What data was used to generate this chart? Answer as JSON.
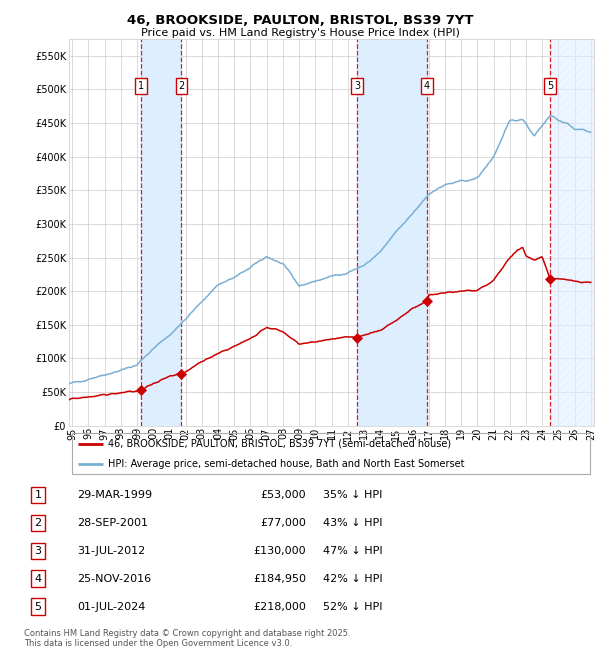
{
  "title": "46, BROOKSIDE, PAULTON, BRISTOL, BS39 7YT",
  "subtitle": "Price paid vs. HM Land Registry's House Price Index (HPI)",
  "ylim": [
    0,
    575000
  ],
  "xlim_start": 1994.8,
  "xlim_end": 2027.2,
  "yticks": [
    0,
    50000,
    100000,
    150000,
    200000,
    250000,
    300000,
    350000,
    400000,
    450000,
    500000,
    550000
  ],
  "ytick_labels": [
    "£0",
    "£50K",
    "£100K",
    "£150K",
    "£200K",
    "£250K",
    "£300K",
    "£350K",
    "£400K",
    "£450K",
    "£500K",
    "£550K"
  ],
  "xticks": [
    1995,
    1996,
    1997,
    1998,
    1999,
    2000,
    2001,
    2002,
    2003,
    2004,
    2005,
    2006,
    2007,
    2008,
    2009,
    2010,
    2011,
    2012,
    2013,
    2014,
    2015,
    2016,
    2017,
    2018,
    2019,
    2020,
    2021,
    2022,
    2023,
    2024,
    2025,
    2026,
    2027
  ],
  "xtick_labels": [
    "95",
    "96",
    "97",
    "98",
    "99",
    "00",
    "01",
    "02",
    "03",
    "04",
    "05",
    "06",
    "07",
    "08",
    "09",
    "10",
    "11",
    "12",
    "13",
    "14",
    "15",
    "16",
    "17",
    "18",
    "19",
    "20",
    "21",
    "22",
    "23",
    "24",
    "25",
    "26",
    "27"
  ],
  "sale_dates": [
    1999.24,
    2001.74,
    2012.58,
    2016.9,
    2024.5
  ],
  "sale_prices": [
    53000,
    77000,
    130000,
    184950,
    218000
  ],
  "sale_labels": [
    "1",
    "2",
    "3",
    "4",
    "5"
  ],
  "red_line_color": "#cc0000",
  "blue_line_color": "#7aafd4",
  "shade_color": "#ddeeff",
  "grid_color": "#cccccc",
  "background_color": "#ffffff",
  "legend_label_red": "46, BROOKSIDE, PAULTON, BRISTOL, BS39 7YT (semi-detached house)",
  "legend_label_blue": "HPI: Average price, semi-detached house, Bath and North East Somerset",
  "table_rows": [
    [
      "1",
      "29-MAR-1999",
      "£53,000",
      "35% ↓ HPI"
    ],
    [
      "2",
      "28-SEP-2001",
      "£77,000",
      "43% ↓ HPI"
    ],
    [
      "3",
      "31-JUL-2012",
      "£130,000",
      "47% ↓ HPI"
    ],
    [
      "4",
      "25-NOV-2016",
      "£184,950",
      "42% ↓ HPI"
    ],
    [
      "5",
      "01-JUL-2024",
      "£218,000",
      "52% ↓ HPI"
    ]
  ],
  "footnote": "Contains HM Land Registry data © Crown copyright and database right 2025.\nThis data is licensed under the Open Government Licence v3.0.",
  "hpi_control_years": [
    1994.8,
    1995,
    1996,
    1997,
    1998,
    1999,
    2000,
    2001,
    2002,
    2003,
    2004,
    2005,
    2006,
    2007,
    2008,
    2009,
    2010,
    2011,
    2012,
    2013,
    2014,
    2015,
    2016,
    2017,
    2018,
    2019,
    2020,
    2021,
    2022,
    2022.8,
    2023.5,
    2024,
    2024.5,
    2025,
    2026,
    2027
  ],
  "hpi_control_values": [
    62000,
    63000,
    70000,
    76000,
    83000,
    90000,
    115000,
    135000,
    158000,
    185000,
    210000,
    220000,
    235000,
    252000,
    240000,
    208000,
    215000,
    222000,
    228000,
    238000,
    258000,
    288000,
    315000,
    345000,
    358000,
    363000,
    368000,
    400000,
    452000,
    456000,
    432000,
    447000,
    462000,
    455000,
    442000,
    437000
  ],
  "red_control_years": [
    1994.8,
    1995,
    1996,
    1997,
    1998,
    1999.0,
    1999.24,
    1999.3,
    2000,
    2001.0,
    2001.74,
    2001.9,
    2003,
    2004,
    2005,
    2006,
    2007,
    2008,
    2009,
    2010,
    2011,
    2012.0,
    2012.58,
    2012.7,
    2013,
    2014,
    2015,
    2016.0,
    2016.9,
    2017.0,
    2018,
    2019,
    2020,
    2021,
    2022,
    2022.5,
    2022.8,
    2023,
    2023.5,
    2024.0,
    2024.5,
    2024.55,
    2025,
    2026,
    2027
  ],
  "red_control_values": [
    38000,
    40000,
    43000,
    46000,
    49000,
    51500,
    53000,
    53500,
    63000,
    73000,
    77000,
    78500,
    95000,
    108000,
    118000,
    130000,
    147000,
    140000,
    121000,
    125000,
    129000,
    132000,
    130000,
    131000,
    135000,
    142000,
    157000,
    174000,
    184950,
    194000,
    198000,
    200000,
    201000,
    216000,
    250000,
    262000,
    265000,
    252000,
    246000,
    252000,
    218000,
    218000,
    218500,
    215000,
    212000
  ]
}
